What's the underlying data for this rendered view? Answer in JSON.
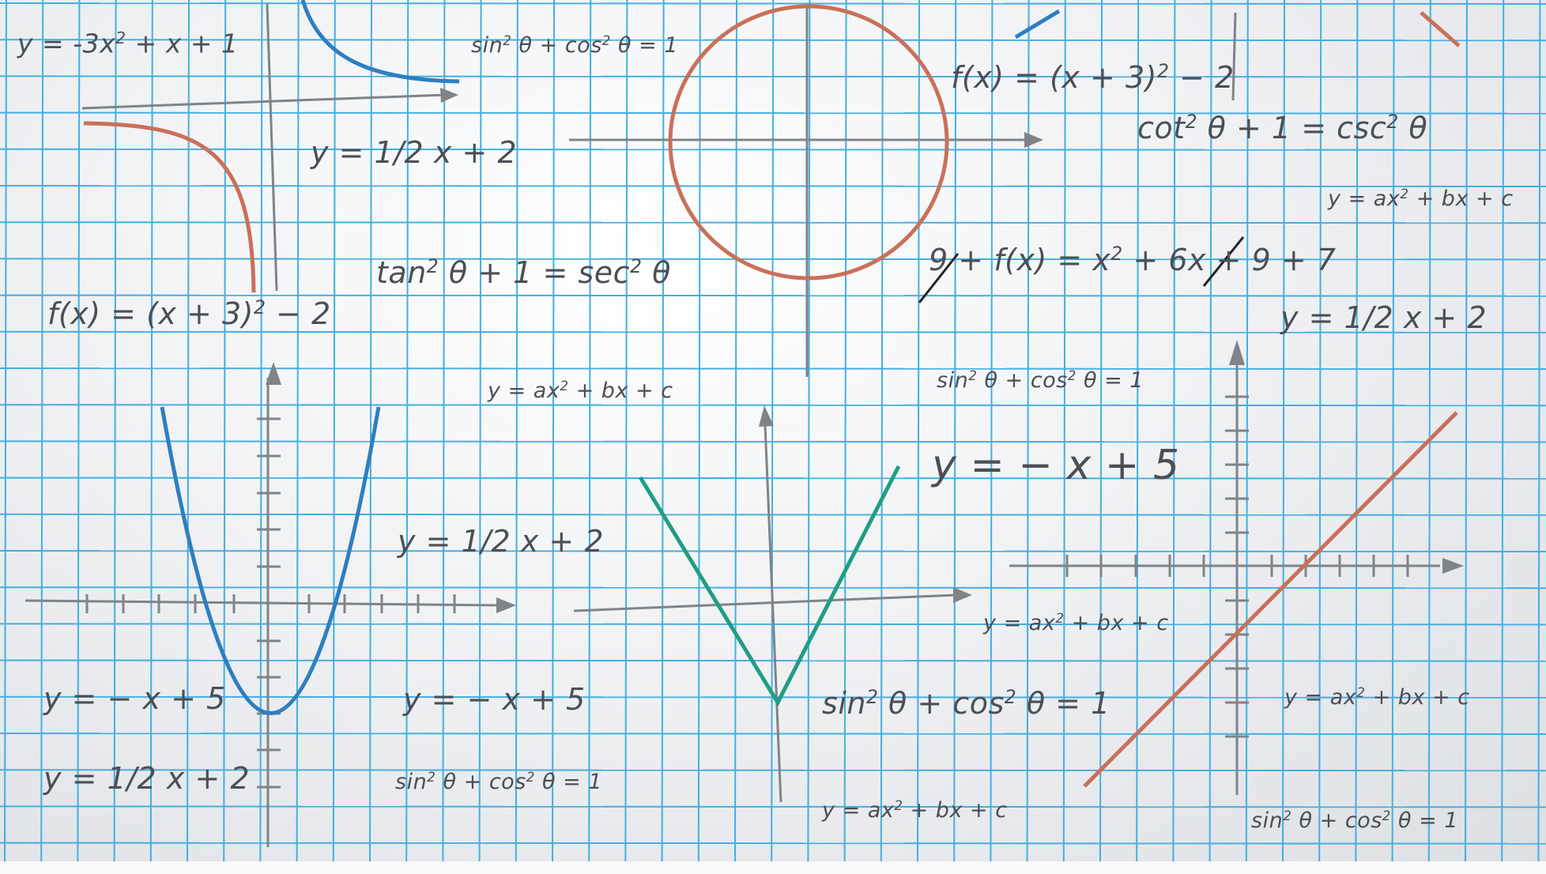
{
  "colors": {
    "grid": "#45aee0",
    "axis": "#7e8487",
    "text": "#4b4f55",
    "curve_blue": "#2d7fc0",
    "curve_red": "#c9705a",
    "curve_green": "#1f9e84"
  },
  "equations": [
    {
      "text": "y = -3x² + x + 1"
    },
    {
      "text": "sin² θ + cos² θ = 1"
    },
    {
      "text": "f(x) = (x + 3)² − 2"
    },
    {
      "text": "cot² θ + 1 = csc² θ"
    },
    {
      "text": "y = ax² + bx + c"
    },
    {
      "text": "y = 1/2 x + 2"
    },
    {
      "text": "tan² θ + 1 = sec² θ"
    },
    {
      "text": "9 + f(x) = x² + 6x + 9 + 7"
    },
    {
      "text": "f(x) = (x + 3)² − 2"
    },
    {
      "text": "y = 1/2 x + 2"
    },
    {
      "text": "y = ax² + bx + c"
    },
    {
      "text": "sin² θ + cos² θ = 1"
    },
    {
      "text": "y = − x + 5"
    },
    {
      "text": "y = 1/2 x + 2"
    },
    {
      "text": "y = ax² + bx + c"
    },
    {
      "text": "y = − x + 5"
    },
    {
      "text": "y = − x + 5"
    },
    {
      "text": "sin² θ + cos² θ = 1"
    },
    {
      "text": "y = ax² + bx + c"
    },
    {
      "text": "y = 1/2 x + 2"
    },
    {
      "text": "sin² θ + cos² θ = 1"
    },
    {
      "text": "y = ax² + bx + c"
    },
    {
      "text": "sin² θ + cos² θ = 1"
    }
  ]
}
